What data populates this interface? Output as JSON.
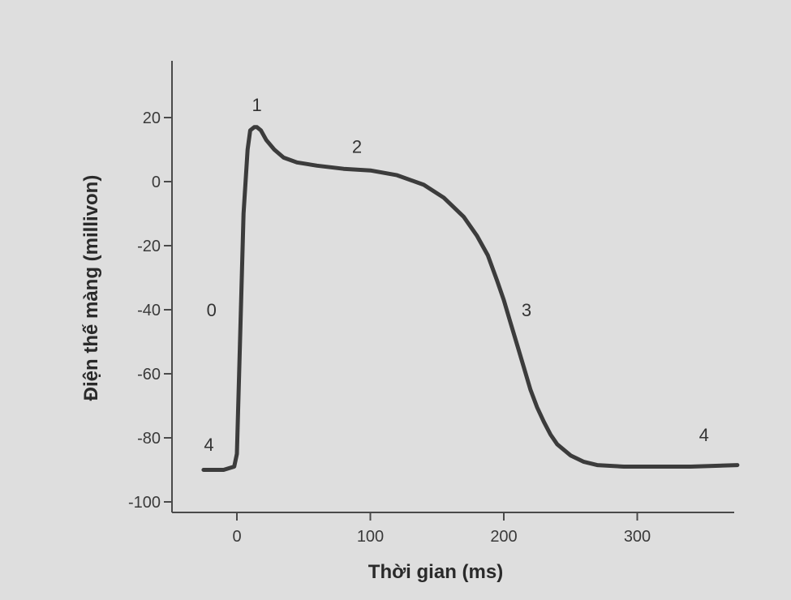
{
  "chart_data": {
    "type": "line",
    "title": "",
    "xlabel": "Thời gian (ms)",
    "ylabel": "Điện thế màng (millivon)",
    "xlim": [
      -25,
      375
    ],
    "ylim": [
      -100,
      35
    ],
    "x_ticks": [
      0,
      100,
      200,
      300
    ],
    "y_ticks": [
      20,
      0,
      -20,
      -40,
      -60,
      -80,
      -100
    ],
    "grid": false,
    "series": [
      {
        "x": [
          -25,
          -10,
          -2,
          0,
          2,
          5,
          8,
          10,
          13,
          15,
          18,
          22,
          28,
          35,
          45,
          60,
          80,
          100,
          120,
          140,
          155,
          170,
          180,
          188,
          195,
          200,
          205,
          210,
          215,
          220,
          225,
          230,
          235,
          240,
          250,
          260,
          270,
          290,
          310,
          340,
          375
        ],
        "y": [
          -90,
          -90,
          -89,
          -85,
          -55,
          -10,
          10,
          16,
          17,
          17,
          16,
          13,
          10,
          7.5,
          6,
          5,
          4,
          3.5,
          2,
          -1,
          -5,
          -11,
          -17,
          -23,
          -31,
          -37,
          -44,
          -51,
          -58,
          -65,
          -70.5,
          -75,
          -79,
          -82,
          -85.5,
          -87.5,
          -88.5,
          -89,
          -89,
          -89,
          -88.5
        ]
      }
    ],
    "annotations": [
      {
        "text": "1",
        "x": 15,
        "y": 22
      },
      {
        "text": "2",
        "x": 90,
        "y": 9
      },
      {
        "text": "3",
        "x": 217,
        "y": -42
      },
      {
        "text": "4",
        "x": 350,
        "y": -81
      },
      {
        "text": "0",
        "x": -19,
        "y": -42
      },
      {
        "text": "4",
        "x": -21,
        "y": -84
      }
    ]
  }
}
